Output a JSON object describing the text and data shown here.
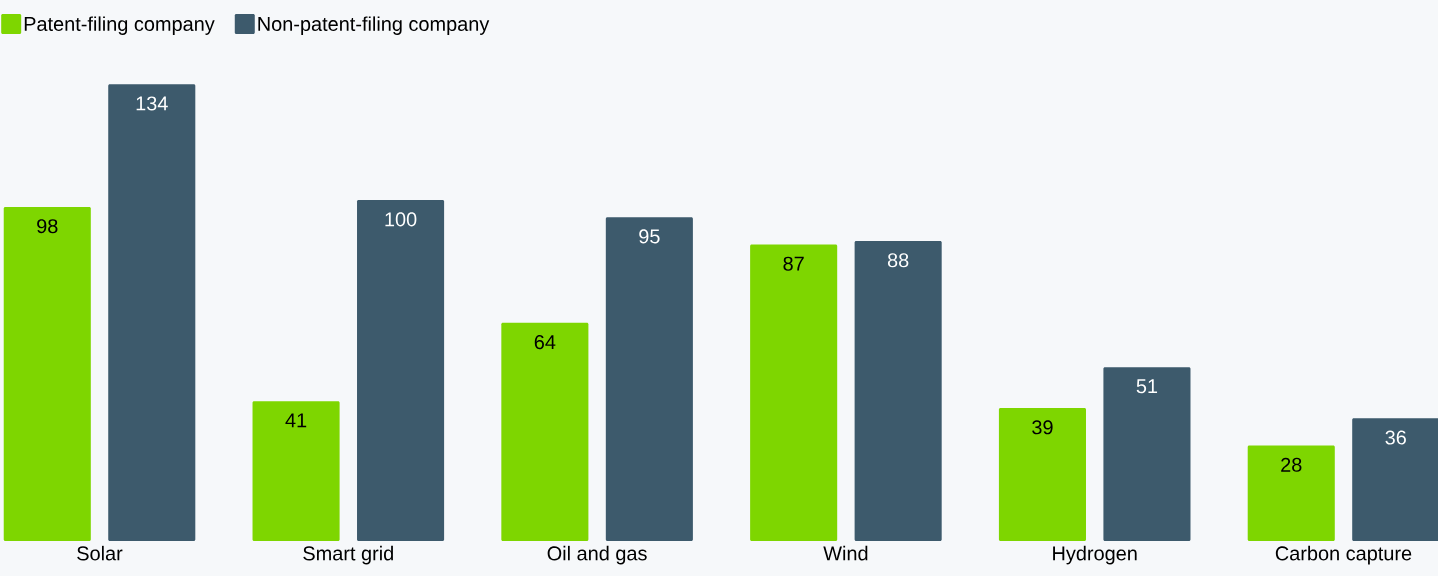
{
  "chart_data": {
    "type": "bar",
    "categories": [
      "Solar",
      "Smart grid",
      "Oil and gas",
      "Wind",
      "Hydrogen",
      "Carbon capture"
    ],
    "series": [
      {
        "name": "Patent-filing company",
        "color": "#7ed600",
        "values": [
          98,
          41,
          64,
          87,
          39,
          28
        ]
      },
      {
        "name": "Non-patent-filing company",
        "color": "#3d5a6c",
        "values": [
          134,
          100,
          95,
          88,
          51,
          36
        ]
      }
    ],
    "tick_labels": "x",
    "data_labels": true,
    "legend": "top left"
  }
}
